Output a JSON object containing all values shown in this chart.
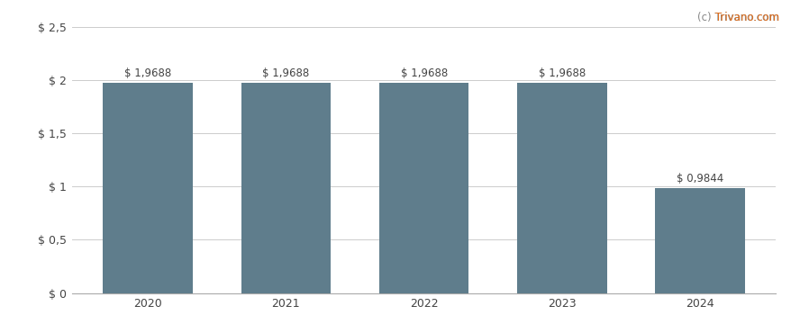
{
  "categories": [
    "2020",
    "2021",
    "2022",
    "2023",
    "2024"
  ],
  "values": [
    1.9688,
    1.9688,
    1.9688,
    1.9688,
    0.9844
  ],
  "labels": [
    "$ 1,9688",
    "$ 1,9688",
    "$ 1,9688",
    "$ 1,9688",
    "$ 0,9844"
  ],
  "bar_color": "#5f7d8c",
  "background_color": "#ffffff",
  "ylim": [
    0,
    2.5
  ],
  "yticks": [
    0,
    0.5,
    1.0,
    1.5,
    2.0,
    2.5
  ],
  "ytick_labels": [
    "$ 0",
    "$ 0,5",
    "$ 1",
    "$ 1,5",
    "$ 2",
    "$ 2,5"
  ],
  "grid_color": "#cccccc",
  "watermark_prefix": "(c) ",
  "watermark_site": "Trivano.com",
  "watermark_color_prefix": "#888888",
  "watermark_color_site": "#e07020",
  "label_fontsize": 8.5,
  "tick_fontsize": 9,
  "watermark_fontsize": 8.5,
  "bar_width": 0.65
}
